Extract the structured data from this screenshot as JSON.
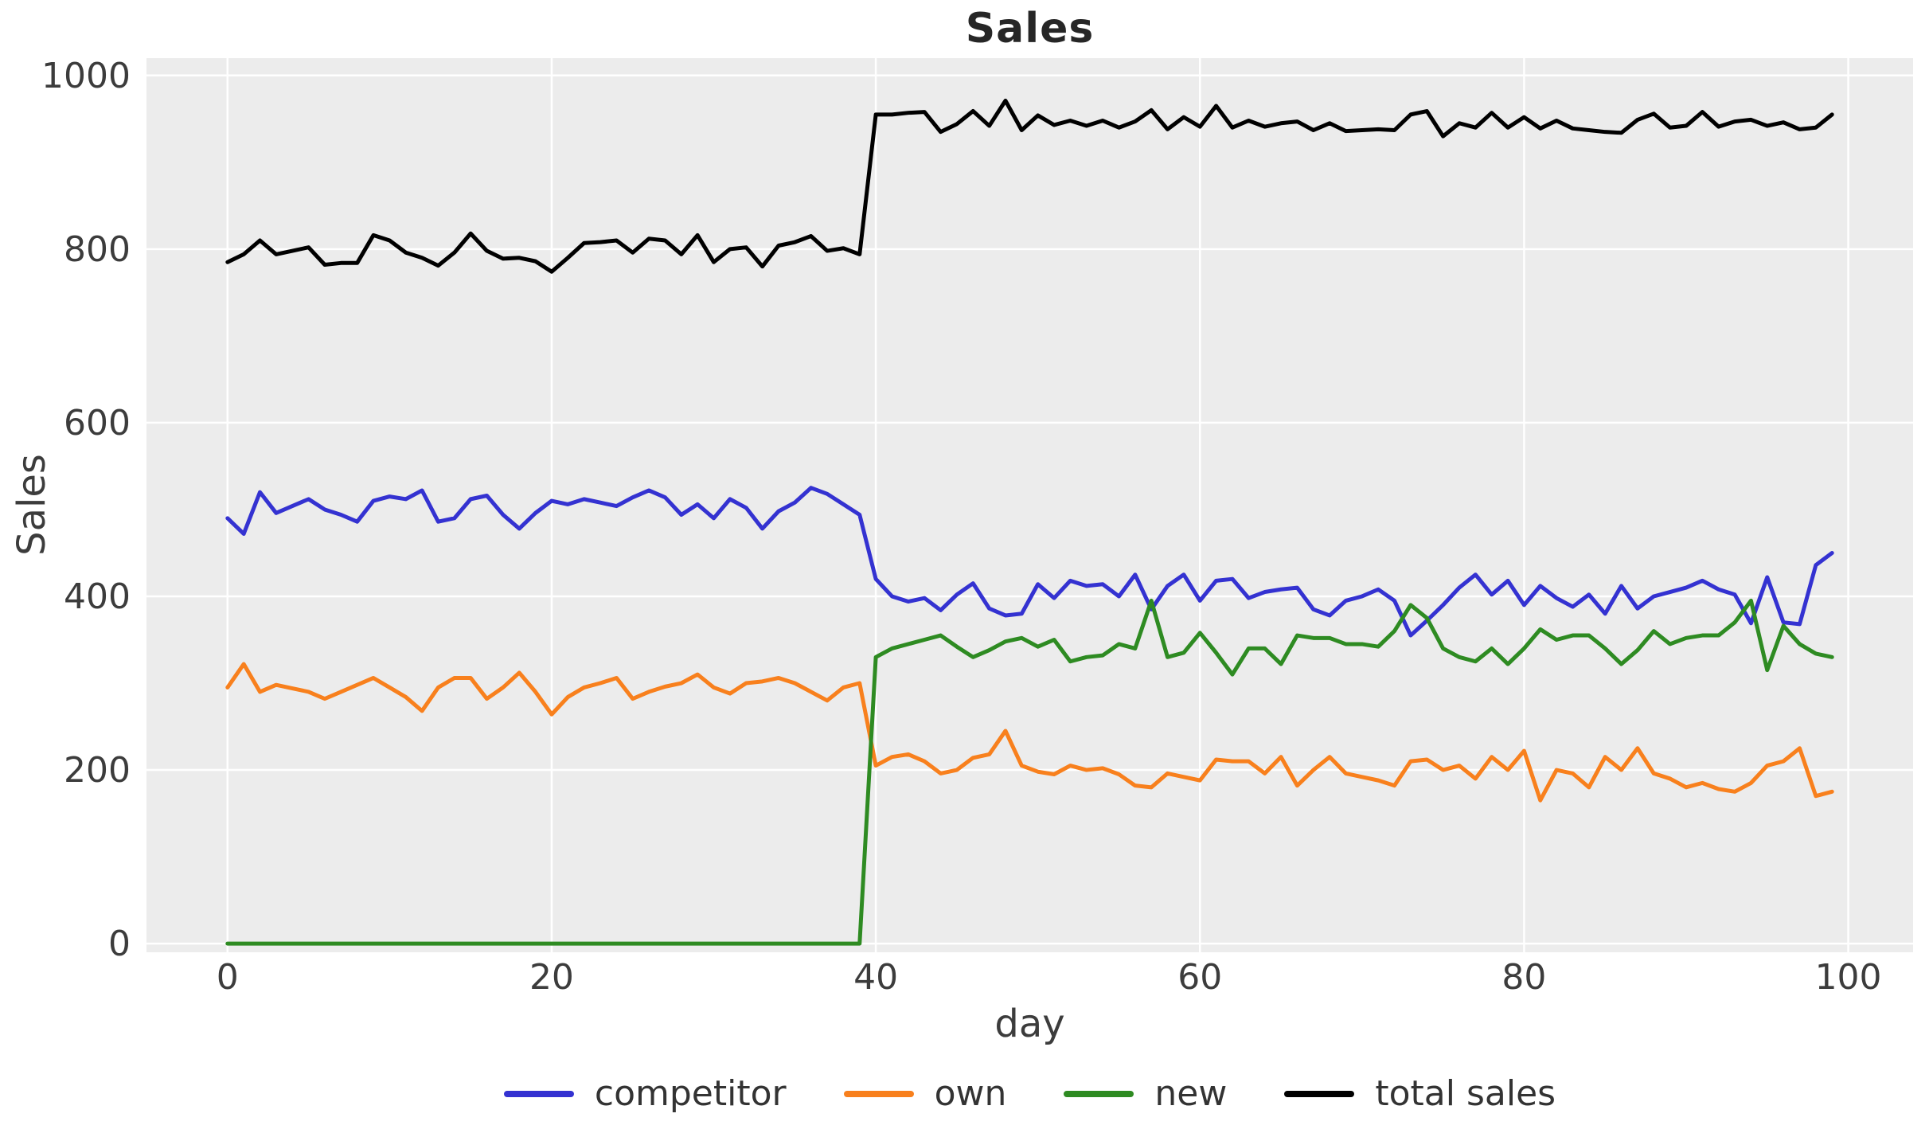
{
  "chart_data": {
    "type": "line",
    "title": "Sales",
    "xlabel": "day",
    "ylabel": "Sales",
    "x_description": "day index 0-99, one point per day",
    "x_ticks": [
      0,
      20,
      40,
      60,
      80,
      100
    ],
    "y_ticks": [
      0,
      200,
      400,
      600,
      800,
      1000
    ],
    "xlim": [
      -5,
      104
    ],
    "ylim": [
      -10,
      1020
    ],
    "grid": true,
    "plot_bg": "#ececec",
    "grid_color": "#ffffff",
    "tick_color": "#3c3c3c",
    "title_color": "#262626",
    "legend_position": "bottom-center",
    "series": [
      {
        "name": "competitor",
        "color": "#3432d1",
        "values": [
          490,
          472,
          520,
          496,
          504,
          512,
          500,
          494,
          486,
          510,
          515,
          512,
          522,
          486,
          490,
          512,
          516,
          494,
          478,
          496,
          510,
          506,
          512,
          508,
          504,
          514,
          522,
          514,
          494,
          506,
          490,
          512,
          502,
          478,
          498,
          508,
          525,
          518,
          506,
          494,
          420,
          400,
          394,
          398,
          384,
          402,
          415,
          386,
          378,
          380,
          414,
          398,
          418,
          412,
          414,
          400,
          425,
          385,
          412,
          425,
          395,
          418,
          420,
          398,
          405,
          408,
          410,
          385,
          378,
          395,
          400,
          408,
          395,
          355,
          372,
          390,
          410,
          425,
          402,
          418,
          390,
          412,
          398,
          388,
          402,
          380,
          412,
          386,
          400,
          405,
          410,
          418,
          408,
          402,
          369,
          422,
          370,
          368,
          436,
          450
        ]
      },
      {
        "name": "own",
        "color": "#f8801d",
        "values": [
          295,
          322,
          290,
          298,
          294,
          290,
          282,
          290,
          298,
          306,
          295,
          284,
          268,
          295,
          306,
          306,
          282,
          295,
          312,
          290,
          264,
          284,
          295,
          300,
          306,
          282,
          290,
          296,
          300,
          310,
          295,
          288,
          300,
          302,
          306,
          300,
          290,
          280,
          295,
          300,
          205,
          215,
          218,
          210,
          196,
          200,
          214,
          218,
          245,
          205,
          198,
          195,
          205,
          200,
          202,
          195,
          182,
          180,
          196,
          192,
          188,
          212,
          210,
          210,
          196,
          215,
          182,
          200,
          215,
          196,
          192,
          188,
          182,
          210,
          212,
          200,
          205,
          190,
          215,
          200,
          222,
          165,
          200,
          196,
          180,
          215,
          200,
          225,
          196,
          190,
          180,
          185,
          178,
          175,
          185,
          205,
          210,
          225,
          170,
          175
        ]
      },
      {
        "name": "new",
        "color": "#2e8b22",
        "values": [
          0,
          0,
          0,
          0,
          0,
          0,
          0,
          0,
          0,
          0,
          0,
          0,
          0,
          0,
          0,
          0,
          0,
          0,
          0,
          0,
          0,
          0,
          0,
          0,
          0,
          0,
          0,
          0,
          0,
          0,
          0,
          0,
          0,
          0,
          0,
          0,
          0,
          0,
          0,
          0,
          330,
          340,
          345,
          350,
          355,
          342,
          330,
          338,
          348,
          352,
          342,
          350,
          325,
          330,
          332,
          345,
          340,
          395,
          330,
          335,
          358,
          335,
          310,
          340,
          340,
          322,
          355,
          352,
          352,
          345,
          345,
          342,
          360,
          390,
          375,
          340,
          330,
          325,
          340,
          322,
          340,
          362,
          350,
          355,
          355,
          340,
          322,
          338,
          360,
          345,
          352,
          355,
          355,
          370,
          395,
          315,
          366,
          345,
          334,
          330
        ]
      },
      {
        "name": "total sales",
        "color": "#000000",
        "values": [
          785,
          794,
          810,
          794,
          798,
          802,
          782,
          784,
          784,
          816,
          810,
          796,
          790,
          781,
          796,
          818,
          798,
          789,
          790,
          786,
          774,
          790,
          807,
          808,
          810,
          796,
          812,
          810,
          794,
          816,
          785,
          800,
          802,
          780,
          804,
          808,
          815,
          798,
          801,
          794,
          955,
          955,
          957,
          958,
          935,
          944,
          959,
          942,
          971,
          937,
          954,
          943,
          948,
          942,
          948,
          940,
          947,
          960,
          938,
          952,
          941,
          965,
          940,
          948,
          941,
          945,
          947,
          937,
          945,
          936,
          937,
          938,
          937,
          955,
          959,
          930,
          945,
          940,
          957,
          940,
          952,
          939,
          948,
          939,
          937,
          935,
          934,
          949,
          956,
          940,
          942,
          958,
          941,
          947,
          949,
          942,
          946,
          938,
          940,
          955
        ]
      }
    ]
  }
}
